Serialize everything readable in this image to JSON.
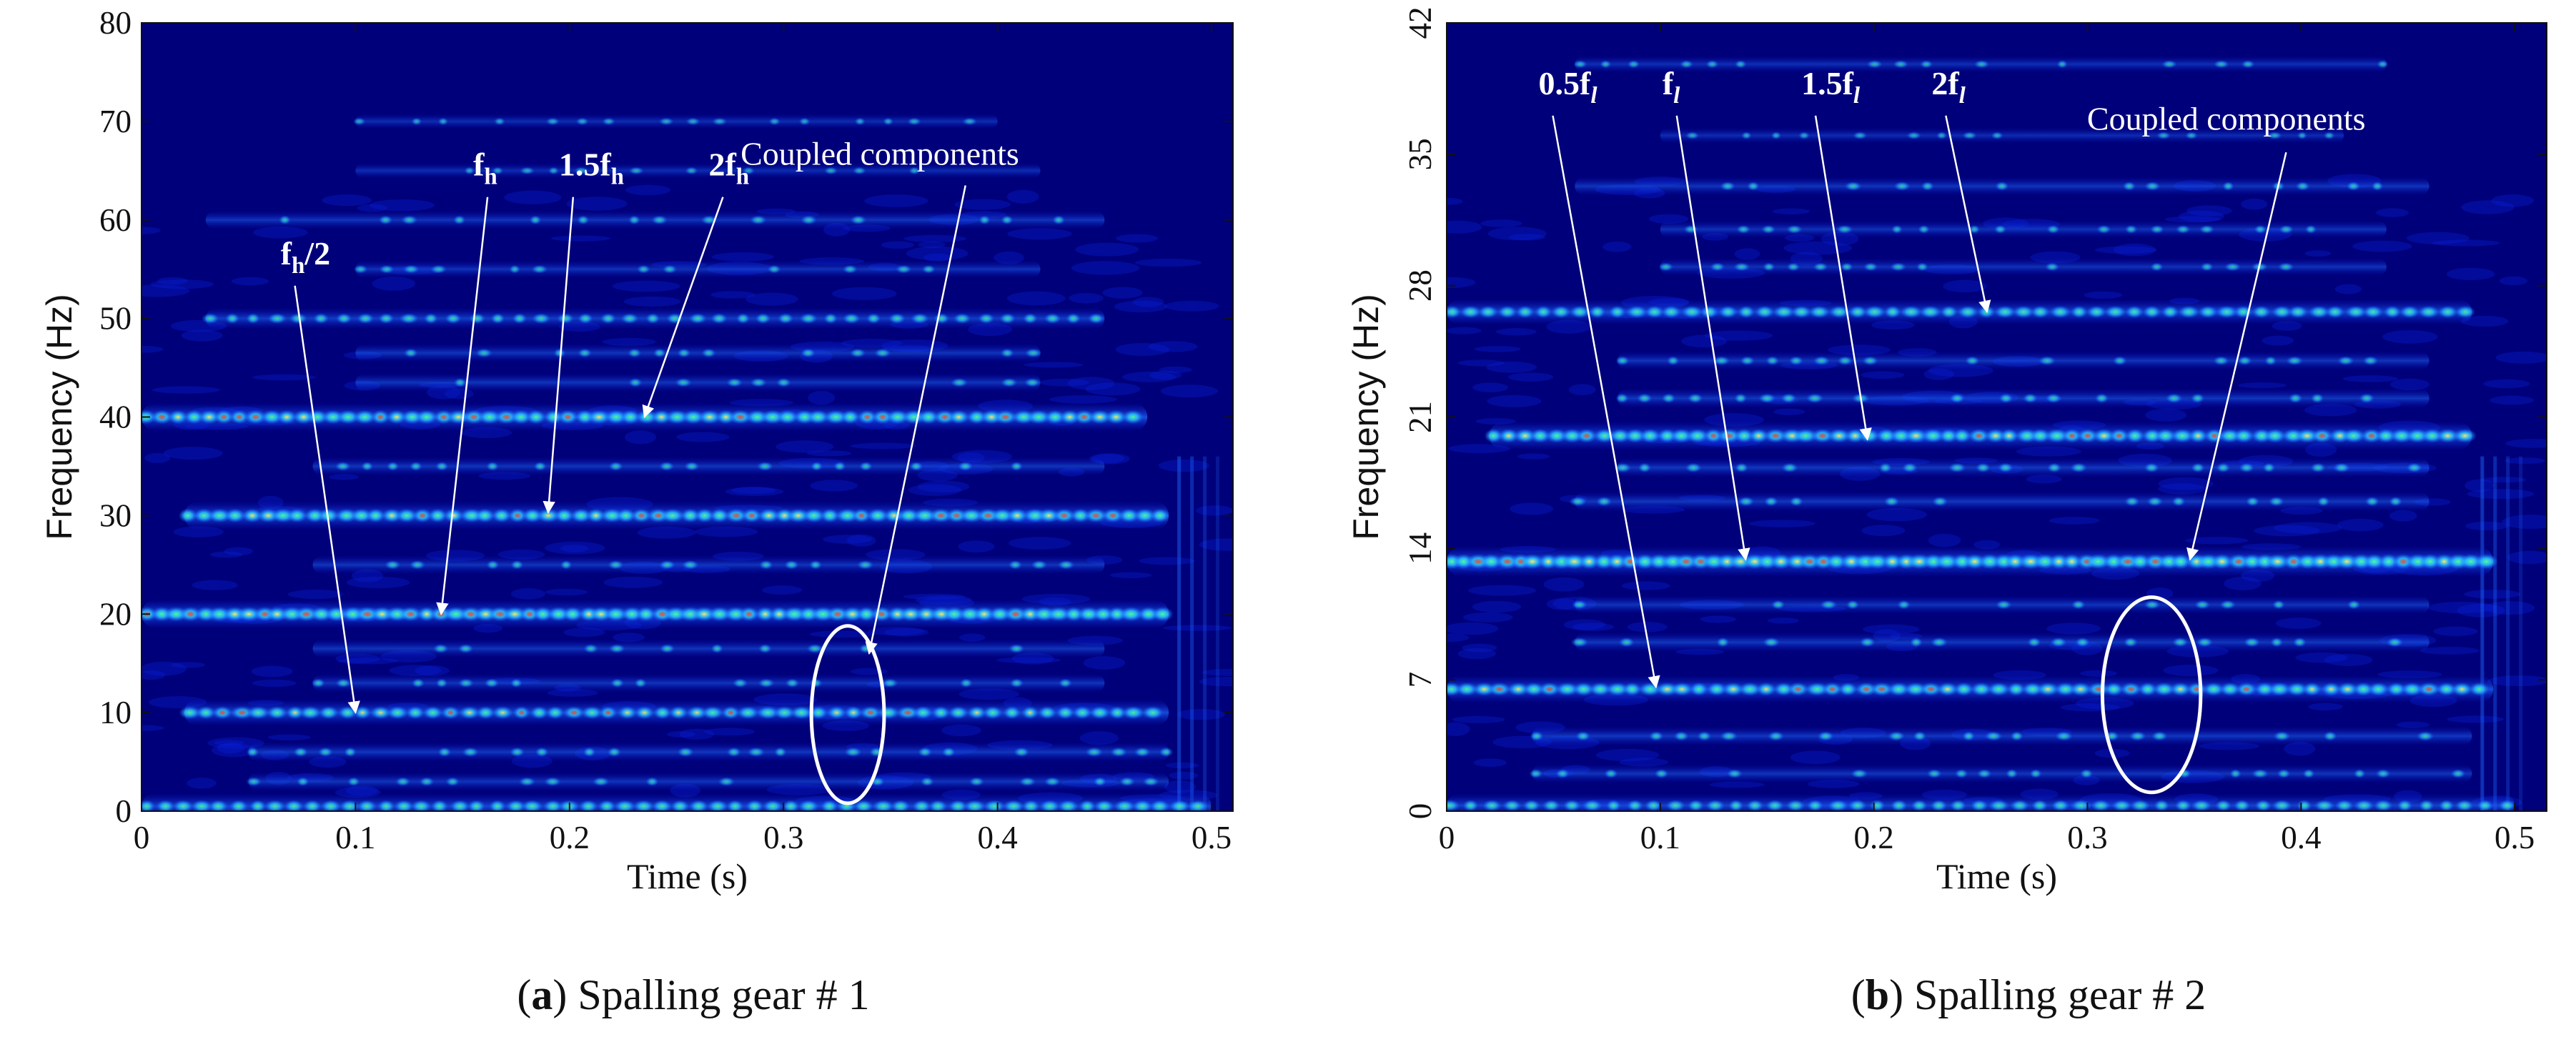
{
  "colors": {
    "background": "#00007a",
    "band_dark": "#0a1fd6",
    "band_mid": "#1f6cff",
    "band_light": "#29c8ff",
    "spot_green": "#56ff8f",
    "spot_yellow": "#fff060",
    "spot_red": "#ff4a1a",
    "annotation": "#ffffff"
  },
  "chart_data": [
    {
      "type": "heatmap",
      "panel_label": "a",
      "caption": "Spalling gear # 1",
      "xlabel": "Time (s)",
      "ylabel": "Frequency (Hz)",
      "xlim": [
        0,
        0.51
      ],
      "ylim": [
        0,
        80
      ],
      "xticks": [
        0,
        0.1,
        0.2,
        0.3,
        0.4,
        0.5
      ],
      "xtick_labels": [
        "0",
        "0.1",
        "0.2",
        "0.3",
        "0.4",
        "0.5"
      ],
      "yticks": [
        0,
        10,
        20,
        30,
        40,
        50,
        60,
        70,
        80
      ],
      "ytick_labels": [
        "0",
        "10",
        "20",
        "30",
        "40",
        "50",
        "60",
        "70",
        "80"
      ],
      "bands": [
        {
          "freq": 0.5,
          "strength": 0.7,
          "t_start": 0.0,
          "t_end": 0.5
        },
        {
          "freq": 3,
          "strength": 0.35,
          "t_start": 0.05,
          "t_end": 0.48
        },
        {
          "freq": 6,
          "strength": 0.4,
          "t_start": 0.05,
          "t_end": 0.48
        },
        {
          "freq": 10,
          "strength": 0.75,
          "t_start": 0.02,
          "t_end": 0.48
        },
        {
          "freq": 13,
          "strength": 0.35,
          "t_start": 0.08,
          "t_end": 0.45
        },
        {
          "freq": 16.5,
          "strength": 0.35,
          "t_start": 0.08,
          "t_end": 0.45
        },
        {
          "freq": 20,
          "strength": 0.9,
          "t_start": 0.0,
          "t_end": 0.48
        },
        {
          "freq": 25,
          "strength": 0.35,
          "t_start": 0.08,
          "t_end": 0.45
        },
        {
          "freq": 30,
          "strength": 0.85,
          "t_start": 0.02,
          "t_end": 0.48
        },
        {
          "freq": 35,
          "strength": 0.35,
          "t_start": 0.08,
          "t_end": 0.45
        },
        {
          "freq": 40,
          "strength": 0.85,
          "t_start": 0.0,
          "t_end": 0.47
        },
        {
          "freq": 43.5,
          "strength": 0.35,
          "t_start": 0.1,
          "t_end": 0.42
        },
        {
          "freq": 46.5,
          "strength": 0.35,
          "t_start": 0.1,
          "t_end": 0.42
        },
        {
          "freq": 50,
          "strength": 0.5,
          "t_start": 0.03,
          "t_end": 0.45
        },
        {
          "freq": 55,
          "strength": 0.3,
          "t_start": 0.1,
          "t_end": 0.42
        },
        {
          "freq": 60,
          "strength": 0.35,
          "t_start": 0.03,
          "t_end": 0.45
        },
        {
          "freq": 65,
          "strength": 0.2,
          "t_start": 0.1,
          "t_end": 0.42
        },
        {
          "freq": 70,
          "strength": 0.2,
          "t_start": 0.1,
          "t_end": 0.4
        }
      ],
      "annotations": [
        {
          "label": "f_h/2",
          "parts": [
            [
              "f",
              "n"
            ],
            [
              "h",
              "sub"
            ],
            [
              "/2",
              "n"
            ]
          ],
          "target": {
            "t": 0.1,
            "f": 10
          },
          "text_at": {
            "t": 0.065,
            "f": 55.5
          }
        },
        {
          "label": "f_h",
          "parts": [
            [
              "f",
              "n"
            ],
            [
              "h",
              "sub"
            ]
          ],
          "target": {
            "t": 0.14,
            "f": 20
          },
          "text_at": {
            "t": 0.155,
            "f": 64.5
          }
        },
        {
          "label": "1.5f_h",
          "parts": [
            [
              "1.5f",
              "n"
            ],
            [
              "h",
              "sub"
            ]
          ],
          "target": {
            "t": 0.19,
            "f": 30.3
          },
          "text_at": {
            "t": 0.195,
            "f": 64.5
          }
        },
        {
          "label": "2f_h",
          "parts": [
            [
              "2f",
              "n"
            ],
            [
              "h",
              "sub"
            ]
          ],
          "target": {
            "t": 0.235,
            "f": 40
          },
          "text_at": {
            "t": 0.265,
            "f": 64.5
          }
        },
        {
          "label": "Coupled components",
          "parts": [
            [
              "Coupled components",
              "n"
            ]
          ],
          "target": {
            "t": 0.34,
            "f": 16
          },
          "text_at": {
            "t": 0.345,
            "f": 65.6
          },
          "from": {
            "t": 0.385,
            "f": 63.5
          }
        }
      ],
      "ellipse": {
        "t": 0.33,
        "f": 9.8,
        "rt": 0.017,
        "rf": 9
      }
    },
    {
      "type": "heatmap",
      "panel_label": "b",
      "caption": "Spalling gear # 2",
      "xlabel": "Time (s)",
      "ylabel": "Frequency (Hz)",
      "xlim": [
        0,
        0.515
      ],
      "ylim": [
        0,
        42
      ],
      "xticks": [
        0,
        0.1,
        0.2,
        0.3,
        0.4,
        0.5
      ],
      "xtick_labels": [
        "0",
        "0.1",
        "0.2",
        "0.3",
        "0.4",
        "0.5"
      ],
      "yticks": [
        0,
        7,
        14,
        21,
        28,
        35,
        42
      ],
      "ytick_labels": [
        "0",
        "7",
        "14",
        "21",
        "28",
        "35",
        "42"
      ],
      "bands": [
        {
          "freq": 0.3,
          "strength": 0.6,
          "t_start": 0.0,
          "t_end": 0.5
        },
        {
          "freq": 2,
          "strength": 0.35,
          "t_start": 0.04,
          "t_end": 0.48
        },
        {
          "freq": 4,
          "strength": 0.4,
          "t_start": 0.04,
          "t_end": 0.48
        },
        {
          "freq": 6.5,
          "strength": 0.8,
          "t_start": 0.0,
          "t_end": 0.49
        },
        {
          "freq": 9,
          "strength": 0.4,
          "t_start": 0.06,
          "t_end": 0.46
        },
        {
          "freq": 11,
          "strength": 0.35,
          "t_start": 0.06,
          "t_end": 0.46
        },
        {
          "freq": 13.3,
          "strength": 0.95,
          "t_start": 0.0,
          "t_end": 0.49
        },
        {
          "freq": 16.5,
          "strength": 0.4,
          "t_start": 0.06,
          "t_end": 0.46
        },
        {
          "freq": 18.3,
          "strength": 0.4,
          "t_start": 0.08,
          "t_end": 0.46
        },
        {
          "freq": 20,
          "strength": 0.85,
          "t_start": 0.02,
          "t_end": 0.48
        },
        {
          "freq": 22,
          "strength": 0.4,
          "t_start": 0.08,
          "t_end": 0.46
        },
        {
          "freq": 24,
          "strength": 0.35,
          "t_start": 0.08,
          "t_end": 0.46
        },
        {
          "freq": 26.6,
          "strength": 0.7,
          "t_start": 0.0,
          "t_end": 0.48
        },
        {
          "freq": 29,
          "strength": 0.3,
          "t_start": 0.1,
          "t_end": 0.44
        },
        {
          "freq": 31,
          "strength": 0.3,
          "t_start": 0.1,
          "t_end": 0.44
        },
        {
          "freq": 33.3,
          "strength": 0.35,
          "t_start": 0.06,
          "t_end": 0.46
        },
        {
          "freq": 36,
          "strength": 0.2,
          "t_start": 0.1,
          "t_end": 0.42
        },
        {
          "freq": 39.8,
          "strength": 0.25,
          "t_start": 0.06,
          "t_end": 0.44
        }
      ],
      "annotations": [
        {
          "label": "0.5f_l",
          "parts": [
            [
              "0.5f",
              "n"
            ],
            [
              "l",
              "sub"
            ]
          ],
          "target": {
            "t": 0.098,
            "f": 6.6
          },
          "text_at": {
            "t": 0.043,
            "f": 38.2
          }
        },
        {
          "label": "f_l",
          "parts": [
            [
              "f",
              "n"
            ],
            [
              "l",
              "sub"
            ]
          ],
          "target": {
            "t": 0.14,
            "f": 13.4
          },
          "text_at": {
            "t": 0.101,
            "f": 38.2
          }
        },
        {
          "label": "1.5f_l",
          "parts": [
            [
              "1.5f",
              "n"
            ],
            [
              "l",
              "sub"
            ]
          ],
          "target": {
            "t": 0.197,
            "f": 19.8
          },
          "text_at": {
            "t": 0.166,
            "f": 38.2
          }
        },
        {
          "label": "2f_l",
          "parts": [
            [
              "2f",
              "n"
            ],
            [
              "l",
              "sub"
            ]
          ],
          "target": {
            "t": 0.253,
            "f": 26.6
          },
          "text_at": {
            "t": 0.227,
            "f": 38.2
          }
        },
        {
          "label": "Coupled components",
          "parts": [
            [
              "Coupled components",
              "n"
            ]
          ],
          "target": {
            "t": 0.348,
            "f": 13.4
          },
          "text_at": {
            "t": 0.365,
            "f": 36.3
          },
          "from": {
            "t": 0.393,
            "f": 35.1
          }
        }
      ],
      "ellipse": {
        "t": 0.33,
        "f": 6.2,
        "rt": 0.023,
        "rf": 5.2
      }
    }
  ]
}
